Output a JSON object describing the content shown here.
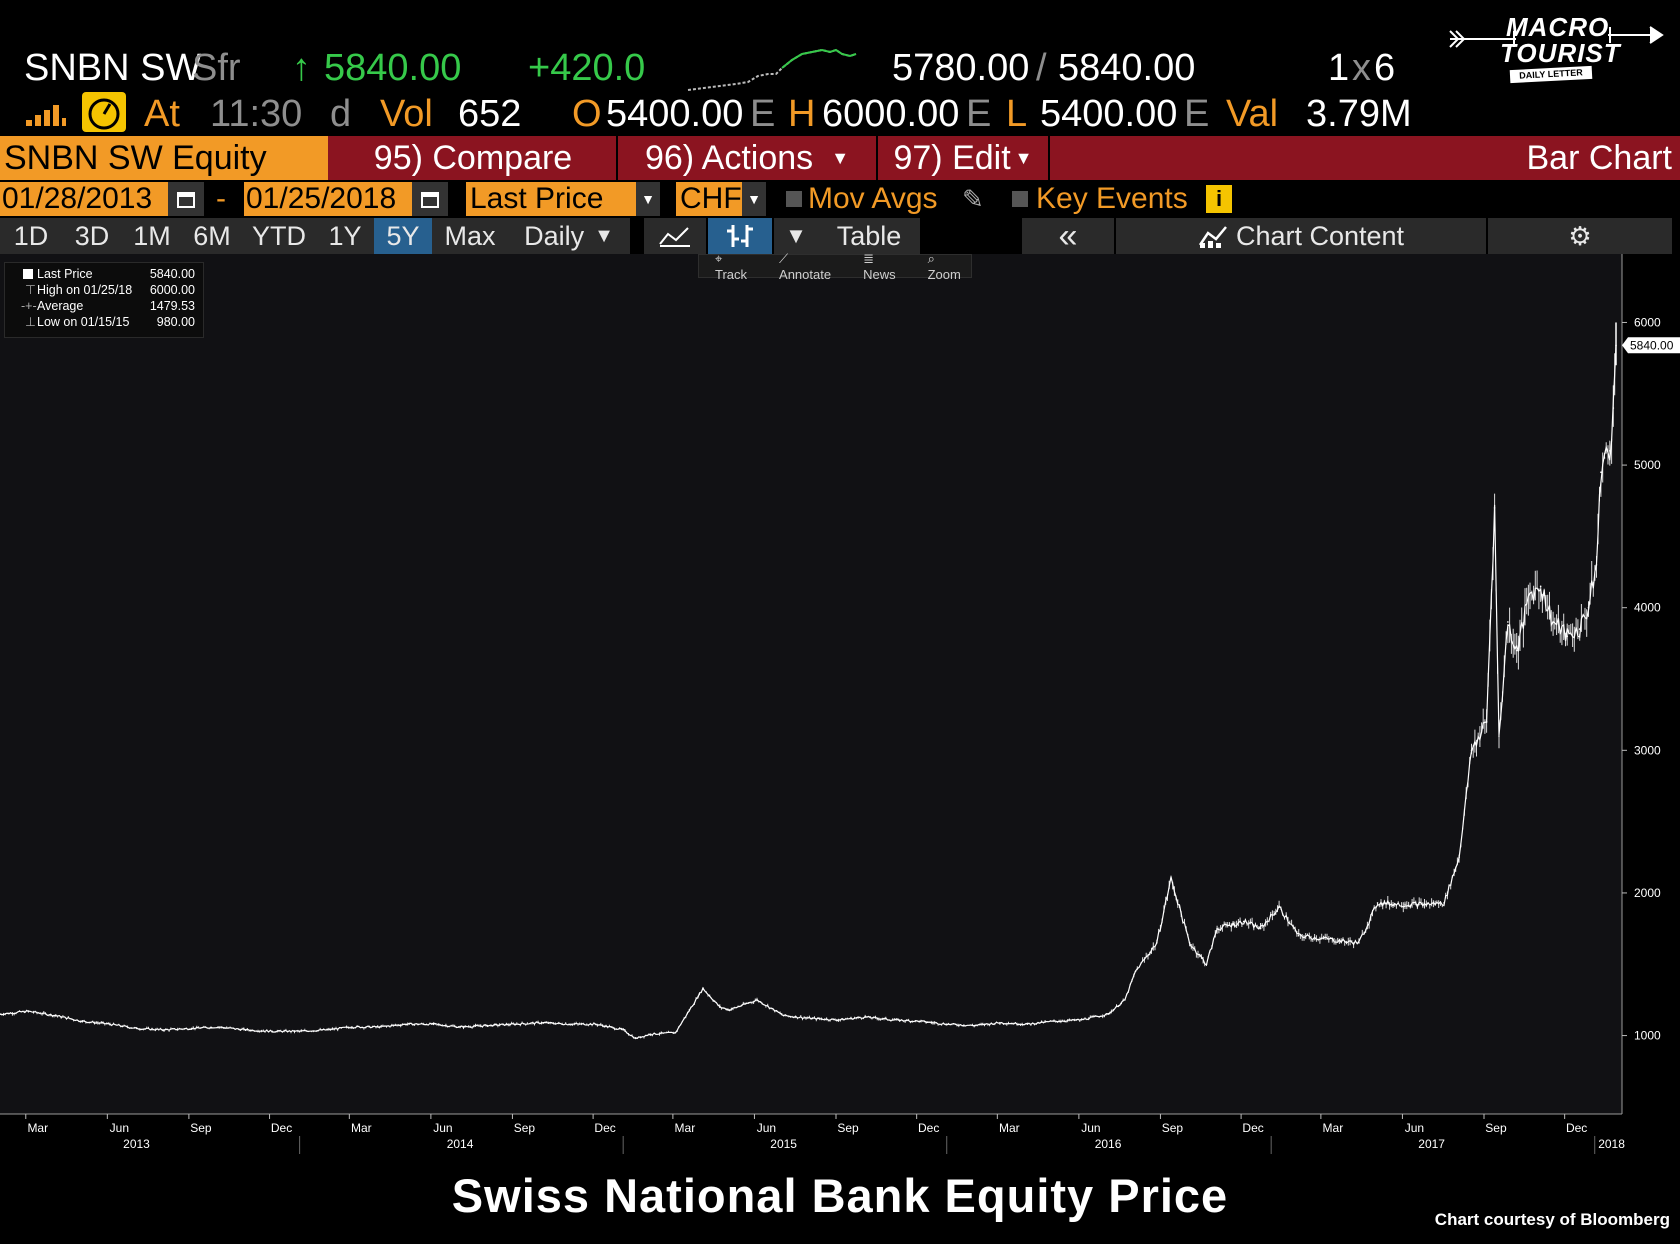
{
  "header": {
    "ticker": "SNBN SW",
    "currency_sym": "Sfr",
    "arrow": "↑",
    "last": "5840.00",
    "change": "+420.0",
    "bid_ask_1": "5780.00",
    "bid_ask_sep": "/",
    "bid_ask_2": "5840.00",
    "size_1": "1",
    "size_x": "x",
    "size_2": "6",
    "at_label": "At",
    "time": "11:30",
    "d_label": "d",
    "vol_label": "Vol",
    "vol": "652",
    "o_label": "O",
    "open": "5400.00",
    "e1": "E",
    "h_label": "H",
    "high": "6000.00",
    "e2": "E",
    "l_label": "L",
    "low": "5400.00",
    "e3": "E",
    "val_label": "Val",
    "val": "3.79M"
  },
  "logo": {
    "line1": "MACRO",
    "line2": "TOURIST",
    "line3": "DAILY LETTER"
  },
  "menu": {
    "security": "SNBN SW Equity",
    "compare": "95) Compare",
    "actions": "96) Actions",
    "edit": "97) Edit",
    "view": "Bar Chart"
  },
  "controls": {
    "start_date": "01/28/2013",
    "dash": "-",
    "end_date": "01/25/2018",
    "field": "Last Price",
    "currency": "CHF",
    "mov_avgs": "Mov Avgs",
    "key_events": "Key Events"
  },
  "periods": [
    "1D",
    "3D",
    "1M",
    "6M",
    "YTD",
    "1Y",
    "5Y",
    "Max"
  ],
  "active_period": "5Y",
  "frequency": "Daily",
  "table_label": "Table",
  "chart_content_label": "Chart Content",
  "tools": [
    "Track",
    "Annotate",
    "News",
    "Zoom"
  ],
  "legend": [
    {
      "label": "Last Price",
      "value": "5840.00"
    },
    {
      "label": "High on 01/25/18",
      "value": "6000.00"
    },
    {
      "label": "Average",
      "value": "1479.53"
    },
    {
      "label": "Low on 01/15/15",
      "value": "980.00"
    }
  ],
  "colors": {
    "background": "#000000",
    "menu_orange": "#f29a26",
    "menu_red": "#8b1420",
    "up_green": "#36c94a",
    "accent_blue": "#27608f",
    "price_line": "#ffffff"
  },
  "chart_data": {
    "type": "line",
    "title": "",
    "xlabel": "",
    "ylabel": "",
    "ylim": [
      450,
      6480
    ],
    "xlim": [
      "2013-01-28",
      "2018-01-25"
    ],
    "y_ticks": [
      1000,
      2000,
      3000,
      4000,
      5000,
      6000
    ],
    "last_price_label": "5840.00",
    "x_month_ticks": [
      "Mar",
      "Jun",
      "Sep",
      "Dec",
      "Mar",
      "Jun",
      "Sep",
      "Dec",
      "Mar",
      "Jun",
      "Sep",
      "Dec",
      "Mar",
      "Jun",
      "Sep",
      "Dec",
      "Mar",
      "Jun",
      "Sep",
      "Dec"
    ],
    "x_year_ticks": [
      "2013",
      "2014",
      "2015",
      "2016",
      "2017",
      "2018"
    ],
    "axis_side": "right",
    "grid": false,
    "legend_position": "top-left",
    "series": [
      {
        "name": "Last Price",
        "x": [
          "2013-01-28",
          "2013-03-01",
          "2013-04-01",
          "2013-05-01",
          "2013-06-01",
          "2013-07-01",
          "2013-08-01",
          "2013-09-01",
          "2013-10-01",
          "2013-11-01",
          "2013-12-01",
          "2014-01-01",
          "2014-02-01",
          "2014-03-01",
          "2014-04-01",
          "2014-05-01",
          "2014-06-01",
          "2014-07-01",
          "2014-08-01",
          "2014-09-01",
          "2014-10-01",
          "2014-11-01",
          "2014-12-01",
          "2015-01-01",
          "2015-01-15",
          "2015-02-01",
          "2015-03-01",
          "2015-04-01",
          "2015-04-20",
          "2015-05-01",
          "2015-06-01",
          "2015-07-01",
          "2015-08-01",
          "2015-09-01",
          "2015-10-01",
          "2015-11-01",
          "2015-12-01",
          "2016-01-01",
          "2016-02-01",
          "2016-03-01",
          "2016-04-01",
          "2016-05-01",
          "2016-06-01",
          "2016-07-01",
          "2016-07-20",
          "2016-08-01",
          "2016-08-25",
          "2016-09-10",
          "2016-10-01",
          "2016-10-20",
          "2016-11-01",
          "2016-12-01",
          "2016-12-20",
          "2017-01-10",
          "2017-02-01",
          "2017-03-01",
          "2017-03-25",
          "2017-04-10",
          "2017-05-01",
          "2017-06-01",
          "2017-06-25",
          "2017-07-15",
          "2017-08-01",
          "2017-08-15",
          "2017-09-01",
          "2017-09-10",
          "2017-09-15",
          "2017-09-25",
          "2017-10-05",
          "2017-10-20",
          "2017-11-01",
          "2017-11-15",
          "2017-12-01",
          "2017-12-15",
          "2017-12-25",
          "2018-01-03",
          "2018-01-08",
          "2018-01-12",
          "2018-01-18",
          "2018-01-22",
          "2018-01-25"
        ],
        "values": [
          1150,
          1170,
          1140,
          1100,
          1080,
          1050,
          1040,
          1050,
          1060,
          1040,
          1030,
          1030,
          1040,
          1060,
          1060,
          1080,
          1080,
          1060,
          1070,
          1080,
          1090,
          1080,
          1080,
          1040,
          980,
          1010,
          1020,
          1330,
          1200,
          1180,
          1250,
          1140,
          1120,
          1110,
          1130,
          1110,
          1100,
          1080,
          1070,
          1090,
          1080,
          1100,
          1110,
          1150,
          1250,
          1450,
          1650,
          2100,
          1650,
          1500,
          1750,
          1800,
          1750,
          1900,
          1700,
          1680,
          1660,
          1650,
          1930,
          1920,
          1920,
          1930,
          2250,
          3000,
          3200,
          4700,
          3100,
          3900,
          3700,
          4100,
          4150,
          3900,
          3800,
          3850,
          4000,
          4300,
          4950,
          5050,
          5100,
          5400,
          5840
        ]
      }
    ]
  }
}
